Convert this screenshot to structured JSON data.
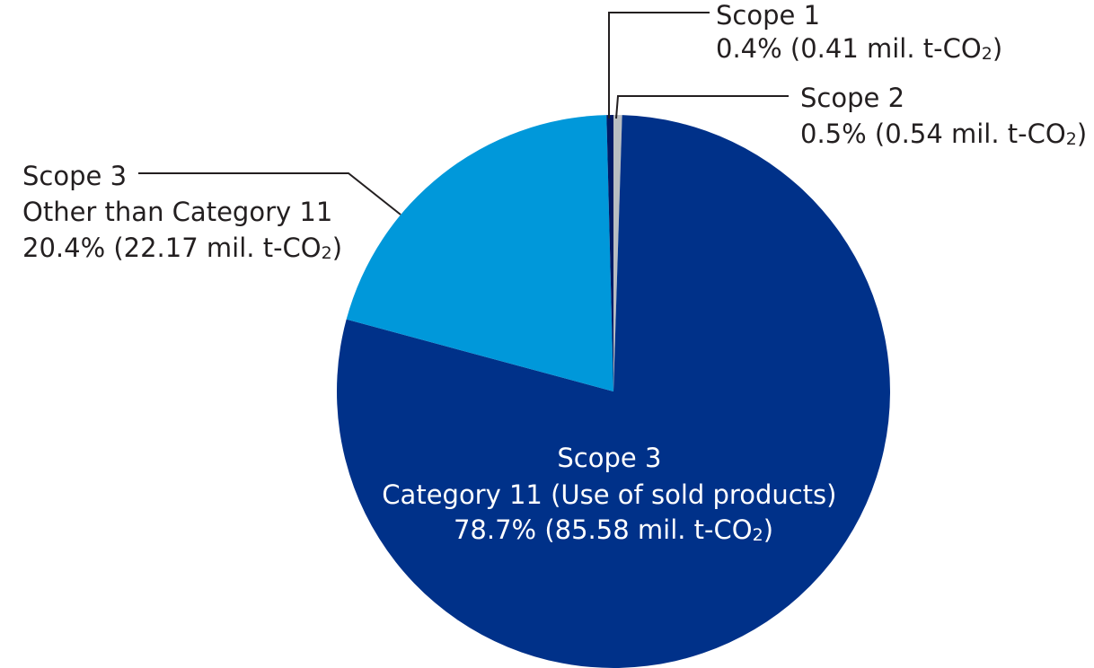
{
  "chart_data": {
    "type": "pie",
    "start_angle_deg": 0,
    "direction": "clockwise",
    "slices": [
      {
        "key": "scope2",
        "lines": [
          "Scope 2",
          "0.5% (0.54 mil. t-CO",
          "2",
          ")"
        ],
        "percent": 0.5,
        "value": 0.54,
        "unit": "mil. t-CO2",
        "color": "#b9bdc1"
      },
      {
        "key": "scope3_cat11",
        "lines": [
          "Scope 3",
          "Category 11 (Use of sold products)",
          "78.7% (85.58 mil. t-CO",
          "2",
          ")"
        ],
        "percent": 78.7,
        "value": 85.58,
        "unit": "mil. t-CO2",
        "color": "#003189"
      },
      {
        "key": "scope3_other",
        "lines": [
          "Scope 3",
          "Other than Category 11",
          "20.4% (22.17 mil. t-CO",
          "2",
          ")"
        ],
        "percent": 20.4,
        "value": 22.17,
        "unit": "mil. t-CO2",
        "color": "#0098da"
      },
      {
        "key": "scope1",
        "lines": [
          "Scope 1",
          "0.4% (0.41 mil. t-CO",
          "2",
          ")"
        ],
        "percent": 0.4,
        "value": 0.41,
        "unit": "mil. t-CO2",
        "color": "#001a66"
      }
    ],
    "legend": "none"
  }
}
